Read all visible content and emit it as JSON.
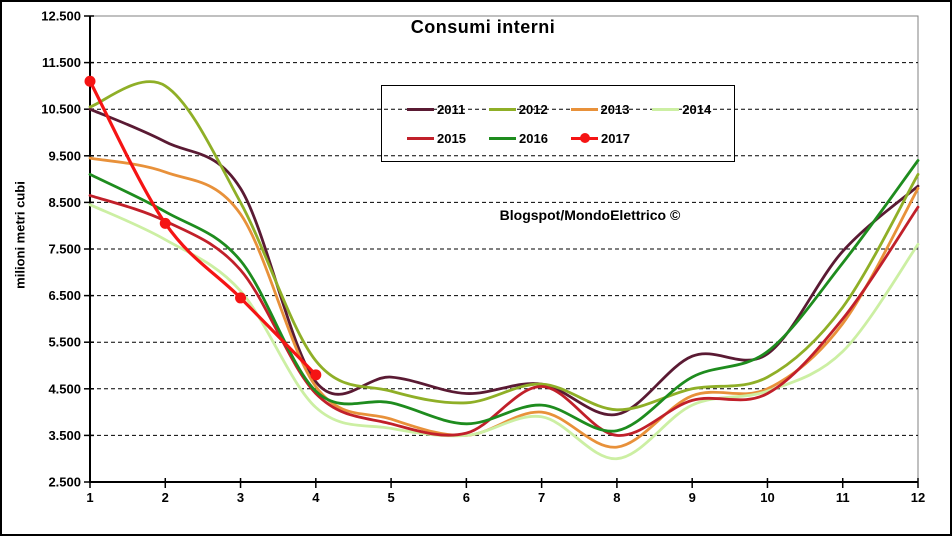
{
  "title": "Consumi interni",
  "watermark": "Blogspot/MondoElettrico ©",
  "chart_data": {
    "type": "line",
    "title": "Consumi interni",
    "xlabel": "",
    "ylabel": "milioni metri cubi",
    "units": "milioni di metri cubi",
    "x": [
      1,
      2,
      3,
      4,
      5,
      6,
      7,
      8,
      9,
      10,
      11,
      12
    ],
    "x_tick_labels": [
      "1",
      "2",
      "3",
      "4",
      "5",
      "6",
      "7",
      "8",
      "9",
      "10",
      "11",
      "12"
    ],
    "ylim": [
      2500,
      12500
    ],
    "y_ticks": [
      {
        "value": 2500,
        "label": "2.500"
      },
      {
        "value": 3500,
        "label": "3.500"
      },
      {
        "value": 4500,
        "label": "4.500"
      },
      {
        "value": 5500,
        "label": "5.500"
      },
      {
        "value": 6500,
        "label": "6.500"
      },
      {
        "value": 7500,
        "label": "7.500"
      },
      {
        "value": 8500,
        "label": "8.500"
      },
      {
        "value": 9500,
        "label": "9.500"
      },
      {
        "value": 10500,
        "label": "10.500"
      },
      {
        "value": 11500,
        "label": "11.500"
      },
      {
        "value": 12500,
        "label": "12.500"
      }
    ],
    "grid": "horizontal-dashed",
    "legend_position": "top-center-boxed-2-rows",
    "series": [
      {
        "name": "2011",
        "color": "#5A1A33",
        "marker": false,
        "values": [
          10500,
          9800,
          8800,
          4650,
          4750,
          4400,
          4600,
          3950,
          5200,
          5250,
          7450,
          8850
        ]
      },
      {
        "name": "2012",
        "color": "#8FAF27",
        "marker": false,
        "values": [
          10550,
          11000,
          8500,
          5100,
          4450,
          4200,
          4600,
          4050,
          4500,
          4750,
          6250,
          9100
        ]
      },
      {
        "name": "2013",
        "color": "#E8913A",
        "marker": false,
        "values": [
          9450,
          9150,
          8250,
          4550,
          3850,
          3500,
          4000,
          3250,
          4350,
          4500,
          5900,
          8800
        ]
      },
      {
        "name": "2014",
        "color": "#CCEFA3",
        "marker": false,
        "values": [
          8450,
          7700,
          6600,
          4100,
          3650,
          3500,
          3900,
          3000,
          4150,
          4450,
          5300,
          7600
        ]
      },
      {
        "name": "2015",
        "color": "#C1202A",
        "marker": false,
        "values": [
          8650,
          8100,
          7050,
          4400,
          3750,
          3550,
          4550,
          3500,
          4250,
          4400,
          6000,
          8400
        ]
      },
      {
        "name": "2016",
        "color": "#1E8C1E",
        "marker": false,
        "values": [
          9100,
          8300,
          7250,
          4450,
          4200,
          3750,
          4150,
          3600,
          4750,
          5300,
          7200,
          9400
        ]
      },
      {
        "name": "2017",
        "color": "#F51414",
        "marker": true,
        "values": [
          11100,
          8050,
          6450,
          4800
        ]
      }
    ]
  }
}
